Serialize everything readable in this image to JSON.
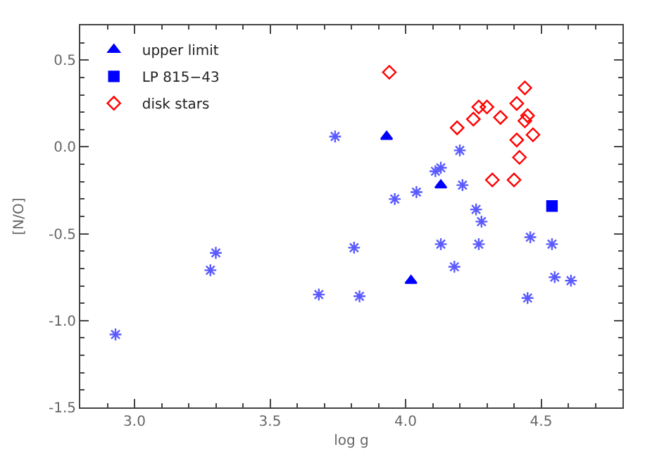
{
  "chart_data": {
    "type": "scatter",
    "xlabel": "log g",
    "ylabel": "[N/O]",
    "xlim": [
      2.8,
      4.8
    ],
    "xticks": [
      {
        "value": 3.0,
        "label": "3.0"
      },
      {
        "value": 3.5,
        "label": "3.5"
      },
      {
        "value": 4.0,
        "label": "4.0"
      },
      {
        "value": 4.5,
        "label": "4.5"
      }
    ],
    "ylim": [
      -1.5,
      0.7
    ],
    "yticks": [
      {
        "value": -1.5,
        "label": "-1.5"
      },
      {
        "value": -1.0,
        "label": "-1.0"
      },
      {
        "value": -0.5,
        "label": "-0.5"
      },
      {
        "value": 0.0,
        "label": "0.0"
      },
      {
        "value": 0.5,
        "label": "0.5"
      }
    ],
    "legend": "top left",
    "series": [
      {
        "color": "#5a5aff",
        "marker": "cross",
        "x": [
          3.74,
          3.96,
          4.04,
          4.11,
          4.13,
          4.2,
          4.21,
          4.26,
          4.28,
          2.93,
          3.28,
          3.3,
          3.68,
          3.81,
          3.83,
          4.13,
          4.18,
          4.27,
          4.45,
          4.46,
          4.54,
          4.55,
          4.61
        ],
        "values": [
          0.06,
          -0.3,
          -0.26,
          -0.14,
          -0.12,
          -0.02,
          -0.22,
          -0.36,
          -0.43,
          -1.08,
          -0.71,
          -0.61,
          -0.85,
          -0.58,
          -0.86,
          -0.56,
          -0.69,
          -0.56,
          -0.87,
          -0.52,
          -0.56,
          -0.75,
          -0.77
        ]
      },
      {
        "name": "upper limit",
        "color": "#0000ff",
        "marker": "triangle",
        "x": [
          3.93,
          4.13,
          4.02
        ],
        "values": [
          0.06,
          -0.22,
          -0.77
        ]
      },
      {
        "name": "LP 815−43",
        "color": "#0000ff",
        "marker": "square",
        "x": [
          4.54
        ],
        "values": [
          -0.34
        ]
      },
      {
        "name": "disk stars",
        "color": "#ff0000",
        "marker": "diamond",
        "x": [
          3.94,
          4.19,
          4.25,
          4.27,
          4.3,
          4.35,
          4.41,
          4.44,
          4.44,
          4.45,
          4.47,
          4.41,
          4.42,
          4.32,
          4.4
        ],
        "values": [
          0.43,
          0.11,
          0.16,
          0.23,
          0.23,
          0.17,
          0.25,
          0.34,
          0.15,
          0.18,
          0.07,
          0.04,
          -0.06,
          -0.19,
          -0.19
        ]
      }
    ]
  }
}
